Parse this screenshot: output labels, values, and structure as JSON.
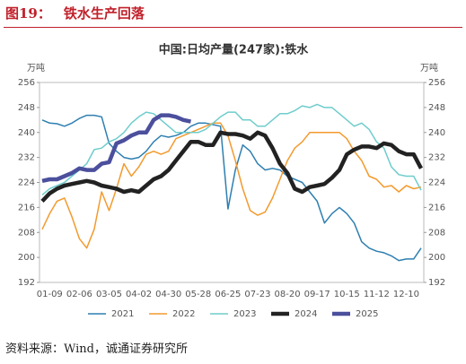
{
  "header": {
    "figure": "图19：",
    "title": "铁水生产回落"
  },
  "source": "资料来源：Wind，诚通证券研究所",
  "chart_data": {
    "type": "line",
    "title": "中国:日均产量(247家):铁水",
    "y_label": "万吨",
    "y2_label": "万吨",
    "categories": [
      null,
      "01-09",
      null,
      null,
      null,
      "02-06",
      null,
      null,
      null,
      "03-05",
      null,
      null,
      null,
      "04-02",
      null,
      null,
      null,
      "04-30",
      null,
      null,
      null,
      "05-28",
      null,
      null,
      null,
      "06-25",
      null,
      null,
      null,
      "07-23",
      null,
      null,
      null,
      "08-20",
      null,
      null,
      null,
      "09-17",
      null,
      null,
      null,
      "10-15",
      null,
      null,
      null,
      "11-12",
      null,
      null,
      null,
      "12-10",
      null,
      null
    ],
    "ylim": [
      192,
      256
    ],
    "yticks": [
      192,
      200,
      208,
      216,
      224,
      232,
      240,
      248,
      256
    ],
    "y2lim": [
      192,
      256
    ],
    "y2ticks": [
      192,
      200,
      208,
      216,
      224,
      232,
      240,
      248,
      256
    ],
    "legend": "bottom",
    "series": [
      {
        "name": "2021",
        "color": "#2e7fb0",
        "width": 1.5,
        "values": [
          244,
          243,
          242.8,
          242,
          243,
          244.5,
          245.5,
          245.5,
          245,
          236.5,
          234,
          232,
          231.5,
          232,
          234,
          237,
          239,
          238.5,
          239,
          240,
          242,
          243,
          243,
          242.5,
          242,
          215.5,
          228,
          236,
          234,
          230,
          228,
          228.5,
          228,
          226,
          225,
          224,
          221,
          218,
          211,
          214,
          216,
          214,
          211,
          205,
          203,
          202,
          201.5,
          200.5,
          199,
          199.5,
          199.5,
          203
        ]
      },
      {
        "name": "2022",
        "color": "#f39a2e",
        "width": 1.5,
        "values": [
          209,
          214,
          218,
          219,
          213,
          206,
          203,
          209,
          221,
          215,
          222,
          230,
          226,
          229,
          233,
          234,
          233,
          234,
          238,
          239,
          240,
          241,
          242,
          243,
          243,
          239,
          231,
          222,
          215,
          213.5,
          214.5,
          219,
          225,
          231,
          235,
          237,
          240,
          240,
          240,
          240,
          240,
          238,
          234,
          231,
          226,
          225,
          222.5,
          223,
          221,
          223,
          222,
          222.5
        ]
      },
      {
        "name": "2023",
        "color": "#6fcccc",
        "width": 1.5,
        "values": [
          220,
          222,
          223,
          224,
          226,
          228,
          230,
          234.5,
          235,
          237,
          238,
          240,
          243,
          245,
          246.5,
          246,
          244,
          242,
          240,
          240,
          240,
          240,
          241,
          243,
          245,
          246.5,
          246.5,
          244,
          244,
          242,
          242,
          244,
          246,
          246,
          247,
          248.5,
          248,
          249,
          248,
          248,
          246,
          244,
          242,
          243,
          241,
          237,
          235,
          229,
          226.5,
          226,
          226,
          221.5
        ]
      },
      {
        "name": "2024",
        "color": "#222222",
        "width": 4.5,
        "values": [
          218,
          220.5,
          222,
          223,
          223.5,
          224,
          224.5,
          224,
          223,
          222.5,
          222,
          221,
          221.5,
          221,
          223,
          225,
          226,
          228,
          231,
          234,
          237,
          237,
          236,
          236,
          240,
          239.5,
          239.5,
          239,
          238,
          240,
          239,
          235,
          230,
          227,
          222,
          221,
          222.5,
          223,
          223.5,
          225.5,
          228,
          233,
          234.5,
          235.5,
          235.5,
          235,
          236.5,
          236,
          234,
          233,
          233,
          228.5
        ]
      },
      {
        "name": "2025",
        "color": "#4b4f9c",
        "width": 4.5,
        "values": [
          224.5,
          225,
          225,
          226,
          227,
          228.5,
          228,
          228,
          230,
          230.5,
          236.5,
          237.5,
          239,
          240,
          240,
          244,
          245.5,
          245.5,
          245,
          244,
          243.5,
          null,
          null,
          null,
          null,
          null,
          null,
          null,
          null,
          null,
          null,
          null,
          null,
          null,
          null,
          null,
          null,
          null,
          null,
          null,
          null,
          null,
          null,
          null,
          null,
          null,
          null,
          null,
          null,
          null,
          null,
          null
        ]
      }
    ]
  }
}
